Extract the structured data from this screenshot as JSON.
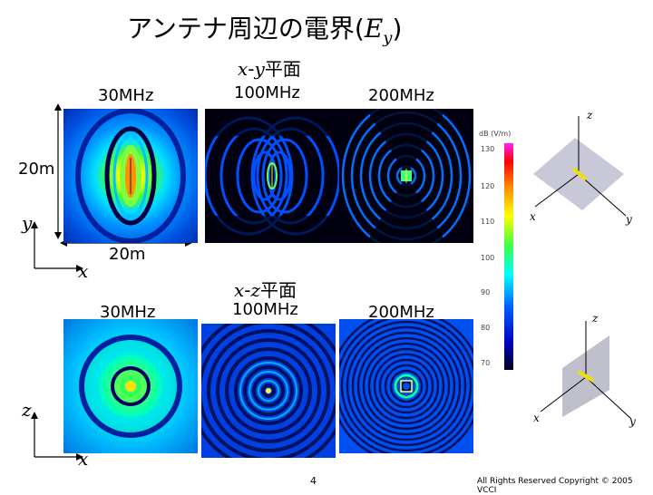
{
  "title": {
    "main": "アンテナ周辺の電界(",
    "var": "E",
    "sub": "y",
    "close": ")"
  },
  "planes": {
    "xy": {
      "var1": "x",
      "dash": "-",
      "var2": "y",
      "suffix": "平面"
    },
    "xz": {
      "var1": "x",
      "dash": "-",
      "var2": "z",
      "suffix": "平面"
    }
  },
  "freqs": {
    "f30": "30MHz",
    "f100": "100MHz",
    "f200": "200MHz"
  },
  "dims": {
    "height": "20m",
    "width": "20m"
  },
  "axes": {
    "y": "y",
    "x": "x",
    "z": "z"
  },
  "colorbar": {
    "unit": "dB (V/m)",
    "ticks": [
      "130",
      "120",
      "110",
      "100",
      "90",
      "80",
      "70"
    ]
  },
  "diagram": {
    "z": "z",
    "x": "x",
    "y": "y"
  },
  "page_number": "4",
  "copyright": "All Rights Reserved Copyright © 2005 VCCI",
  "colors": {
    "panel_bg": "#000000",
    "cb_top": "#ff20ff",
    "cb_bottom": "#000020",
    "plane_fill": "#c8c8d8",
    "antenna": "#f0e000"
  }
}
